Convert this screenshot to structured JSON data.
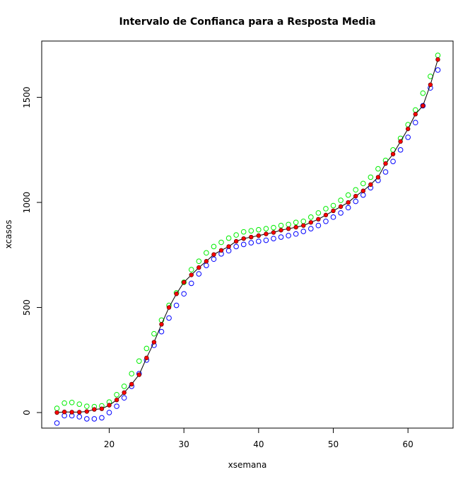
{
  "chart_data": {
    "type": "scatter",
    "title": "Intervalo de Confianca para a Resposta Media",
    "x_label": "xsemana",
    "y_label": "xcasos",
    "x": [
      13,
      14,
      15,
      16,
      17,
      18,
      19,
      20,
      21,
      22,
      23,
      24,
      25,
      26,
      27,
      28,
      29,
      30,
      31,
      32,
      33,
      34,
      35,
      36,
      37,
      38,
      39,
      40,
      41,
      42,
      43,
      44,
      45,
      46,
      47,
      48,
      49,
      50,
      51,
      52,
      53,
      54,
      55,
      56,
      57,
      58,
      59,
      60,
      61,
      62,
      63,
      64
    ],
    "series": [
      {
        "color": "#00ee00",
        "marker": "open",
        "values": [
          20,
          45,
          48,
          40,
          30,
          28,
          32,
          50,
          85,
          125,
          185,
          245,
          305,
          375,
          440,
          510,
          570,
          620,
          680,
          720,
          760,
          790,
          810,
          830,
          845,
          860,
          865,
          870,
          875,
          880,
          890,
          895,
          905,
          910,
          930,
          950,
          970,
          985,
          1010,
          1035,
          1060,
          1090,
          1120,
          1160,
          1200,
          1250,
          1305,
          1370,
          1440,
          1520,
          1600,
          1700
        ]
      },
      {
        "color": "#0000ff",
        "marker": "open",
        "values": [
          -50,
          -15,
          -15,
          -20,
          -30,
          -30,
          -25,
          0,
          30,
          70,
          125,
          185,
          250,
          320,
          385,
          450,
          510,
          565,
          615,
          660,
          700,
          730,
          755,
          770,
          790,
          800,
          808,
          815,
          820,
          828,
          835,
          842,
          850,
          862,
          875,
          890,
          910,
          930,
          950,
          975,
          1005,
          1035,
          1070,
          1105,
          1145,
          1195,
          1250,
          1310,
          1380,
          1460,
          1545,
          1630
        ]
      },
      {
        "color": "#000000",
        "marker": "line",
        "values": [
          0,
          3,
          2,
          2,
          5,
          15,
          18,
          35,
          60,
          95,
          135,
          180,
          260,
          335,
          420,
          500,
          565,
          620,
          655,
          690,
          720,
          752,
          772,
          790,
          815,
          828,
          835,
          842,
          850,
          857,
          868,
          875,
          882,
          890,
          905,
          920,
          940,
          960,
          980,
          1000,
          1030,
          1055,
          1085,
          1120,
          1185,
          1230,
          1290,
          1350,
          1420,
          1460,
          1560,
          1680
        ]
      },
      {
        "color": "#ff0000",
        "marker": "filled",
        "values": [
          0,
          3,
          2,
          2,
          5,
          15,
          18,
          35,
          60,
          95,
          135,
          180,
          260,
          335,
          420,
          500,
          565,
          620,
          655,
          690,
          720,
          752,
          772,
          790,
          815,
          828,
          835,
          842,
          850,
          857,
          868,
          875,
          882,
          890,
          905,
          920,
          940,
          960,
          980,
          1000,
          1030,
          1055,
          1085,
          1120,
          1185,
          1230,
          1290,
          1350,
          1420,
          1460,
          1560,
          1680
        ]
      }
    ],
    "xlim": [
      10.96,
      66.04
    ],
    "xticks": [
      20,
      30,
      40,
      50,
      60
    ],
    "ylim": [
      -74,
      1768
    ],
    "yticks": [
      0,
      500,
      1000,
      1500
    ]
  }
}
